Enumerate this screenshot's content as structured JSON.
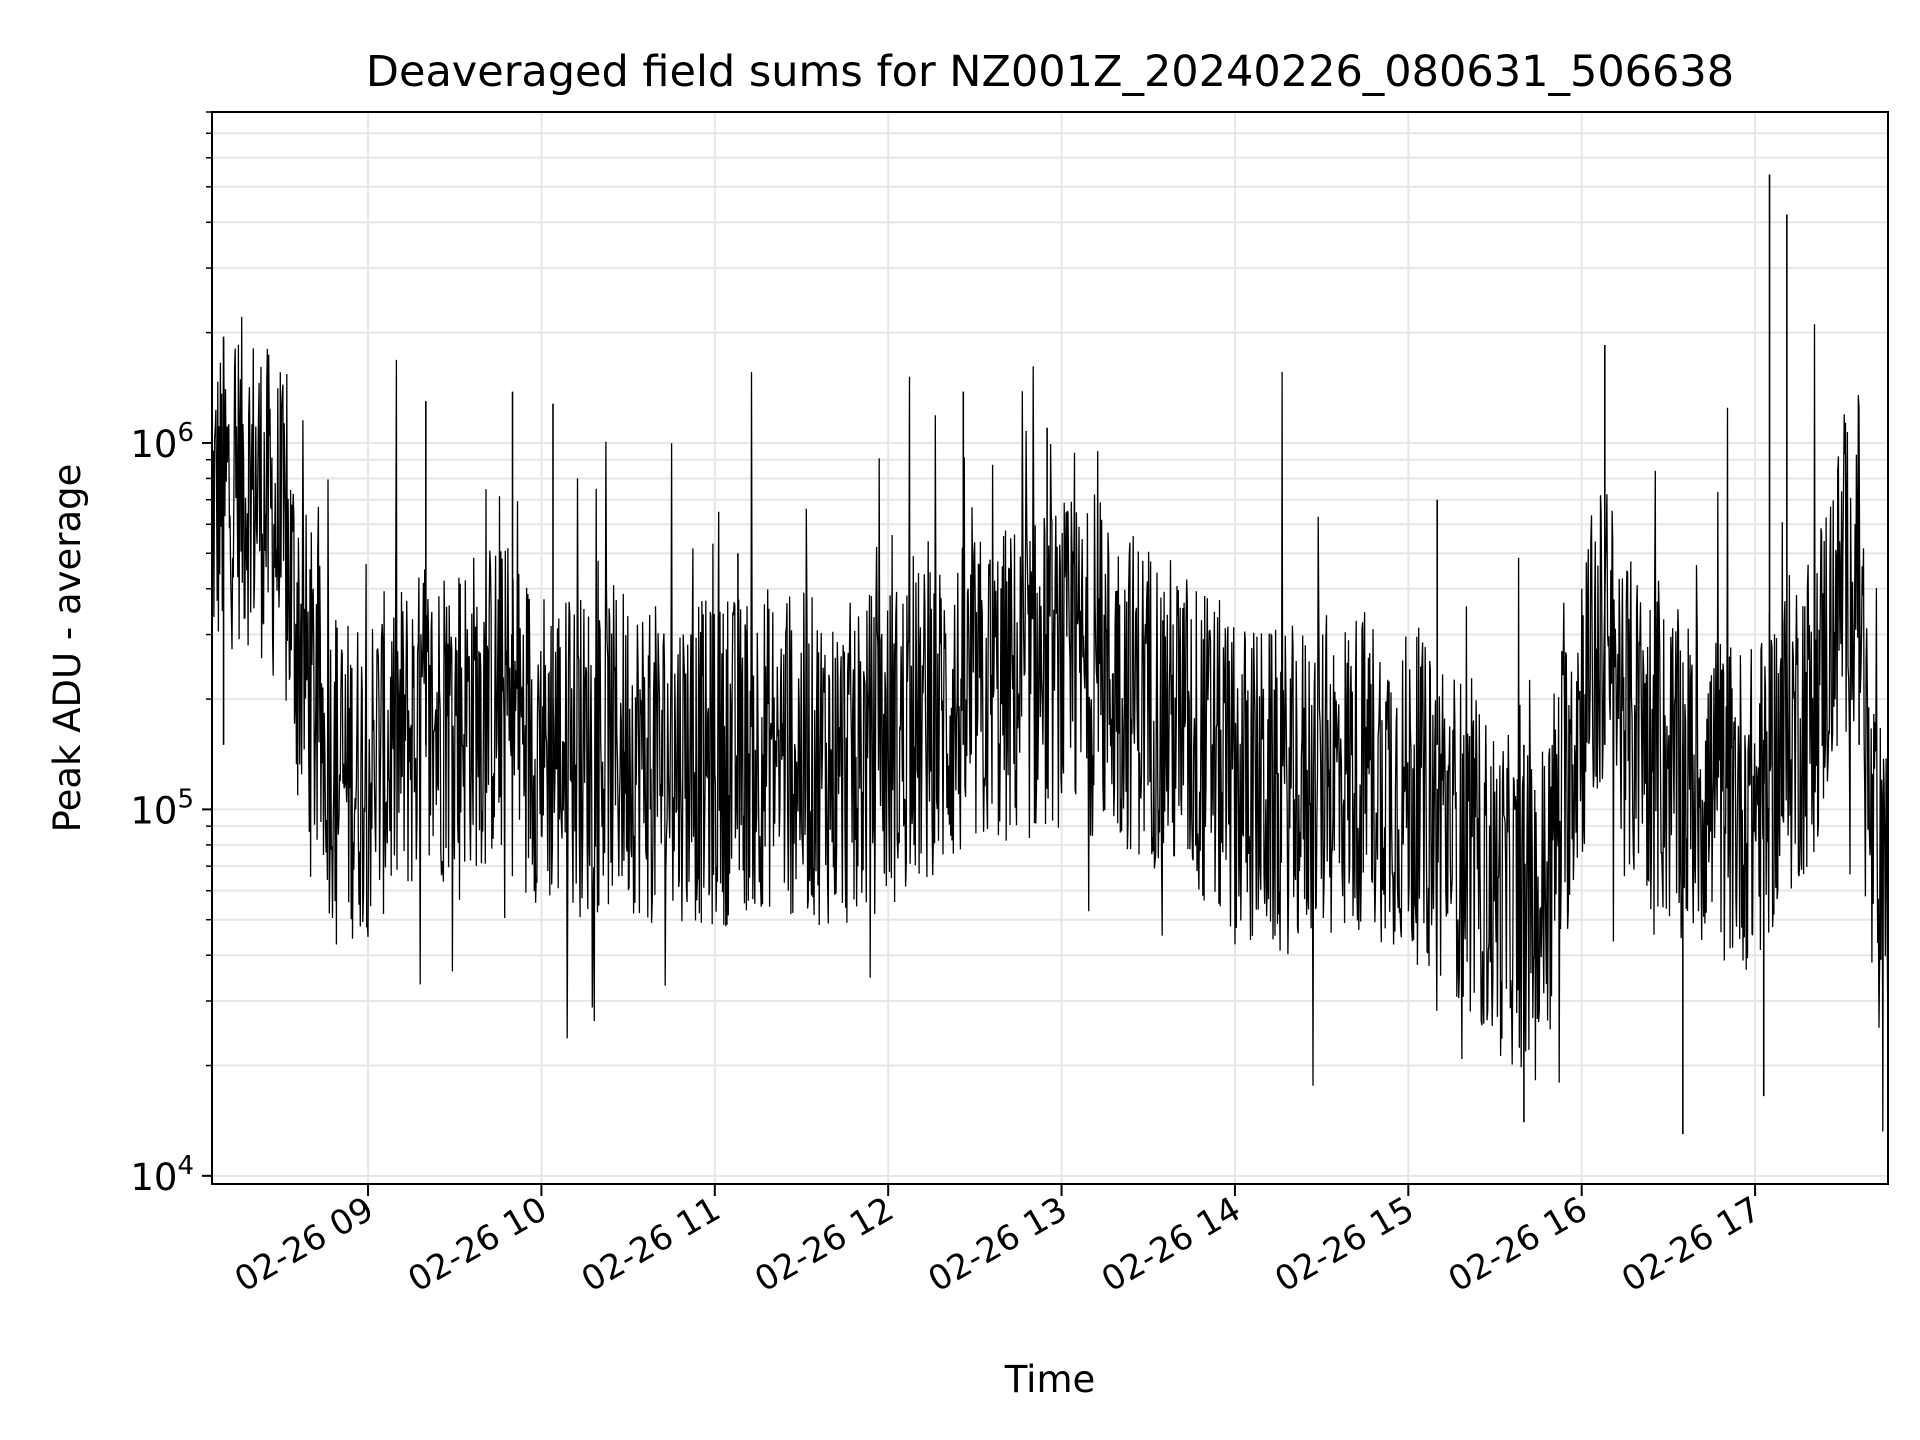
{
  "chart_data": {
    "type": "line",
    "title": "Deaveraged field sums for NZ001Z_20240226_080631_506638",
    "xlabel": "Time",
    "ylabel": "Peak ADU - average",
    "yscale": "log",
    "ylim": [
      9500,
      8000000
    ],
    "y_ticks": [
      {
        "value": 10000,
        "base": "10",
        "exp": "4"
      },
      {
        "value": 100000,
        "base": "10",
        "exp": "5"
      },
      {
        "value": 1000000,
        "base": "10",
        "exp": "6"
      }
    ],
    "xlim": [
      "2024-02-26 08:06",
      "2024-02-26 17:46"
    ],
    "x_ticks": [
      {
        "value": "2024-02-26 09:00",
        "label": "02-26 09"
      },
      {
        "value": "2024-02-26 10:00",
        "label": "02-26 10"
      },
      {
        "value": "2024-02-26 11:00",
        "label": "02-26 11"
      },
      {
        "value": "2024-02-26 12:00",
        "label": "02-26 12"
      },
      {
        "value": "2024-02-26 13:00",
        "label": "02-26 13"
      },
      {
        "value": "2024-02-26 14:00",
        "label": "02-26 14"
      },
      {
        "value": "2024-02-26 15:00",
        "label": "02-26 15"
      },
      {
        "value": "2024-02-26 16:00",
        "label": "02-26 16"
      },
      {
        "value": "2024-02-26 17:00",
        "label": "02-26 17"
      }
    ],
    "grid": true,
    "line_color": "#000000",
    "grid_color": "#e6e6e6",
    "series": [
      {
        "x": [
          "2024-02-26 08:06",
          "2024-02-26 08:15",
          "2024-02-26 08:22",
          "2024-02-26 08:30",
          "2024-02-26 08:38",
          "2024-02-26 08:45",
          "2024-02-26 08:52",
          "2024-02-26 09:00",
          "2024-02-26 09:15",
          "2024-02-26 09:30",
          "2024-02-26 09:45",
          "2024-02-26 10:00",
          "2024-02-26 10:15",
          "2024-02-26 10:30",
          "2024-02-26 10:40",
          "2024-02-26 10:50",
          "2024-02-26 11:00",
          "2024-02-26 11:15",
          "2024-02-26 11:30",
          "2024-02-26 11:45",
          "2024-02-26 12:00",
          "2024-02-26 12:15",
          "2024-02-26 12:30",
          "2024-02-26 12:45",
          "2024-02-26 13:00",
          "2024-02-26 13:15",
          "2024-02-26 13:30",
          "2024-02-26 13:45",
          "2024-02-26 14:00",
          "2024-02-26 14:15",
          "2024-02-26 14:30",
          "2024-02-26 14:45",
          "2024-02-26 15:00",
          "2024-02-26 15:15",
          "2024-02-26 15:30",
          "2024-02-26 15:45",
          "2024-02-26 16:00",
          "2024-02-26 16:08",
          "2024-02-26 16:15",
          "2024-02-26 16:30",
          "2024-02-26 16:45",
          "2024-02-26 17:00",
          "2024-02-26 17:10",
          "2024-02-26 17:20",
          "2024-02-26 17:30",
          "2024-02-26 17:36",
          "2024-02-26 17:40",
          "2024-02-26 17:46"
        ],
        "values": [
          650000,
          800000,
          750000,
          550000,
          250000,
          150000,
          120000,
          130000,
          160000,
          180000,
          200000,
          150000,
          140000,
          150000,
          130000,
          140000,
          130000,
          150000,
          140000,
          130000,
          150000,
          170000,
          200000,
          220000,
          250000,
          230000,
          200000,
          160000,
          120000,
          110000,
          120000,
          130000,
          110000,
          90000,
          60000,
          50000,
          200000,
          300000,
          180000,
          130000,
          110000,
          100000,
          150000,
          200000,
          400000,
          500000,
          80000,
          50000
        ]
      }
    ],
    "spikes": [
      {
        "x": "2024-02-26 08:10",
        "value": 1950000
      },
      {
        "x": "2024-02-26 09:20",
        "value": 1300000
      },
      {
        "x": "2024-02-26 09:50",
        "value": 1380000
      },
      {
        "x": "2024-02-26 10:04",
        "value": 1280000
      },
      {
        "x": "2024-02-26 11:08",
        "value": 500000
      },
      {
        "x": "2024-02-26 12:26",
        "value": 1380000
      },
      {
        "x": "2024-02-26 12:55",
        "value": 1100000
      },
      {
        "x": "2024-02-26 15:10",
        "value": 700000
      },
      {
        "x": "2024-02-26 15:40",
        "value": 14000
      },
      {
        "x": "2024-02-26 16:08",
        "value": 1850000
      },
      {
        "x": "2024-02-26 16:35",
        "value": 13000
      },
      {
        "x": "2024-02-26 17:03",
        "value": 16500
      },
      {
        "x": "2024-02-26 17:05",
        "value": 5400000
      },
      {
        "x": "2024-02-26 17:11",
        "value": 4200000
      },
      {
        "x": "2024-02-26 17:36",
        "value": 700000
      }
    ]
  }
}
